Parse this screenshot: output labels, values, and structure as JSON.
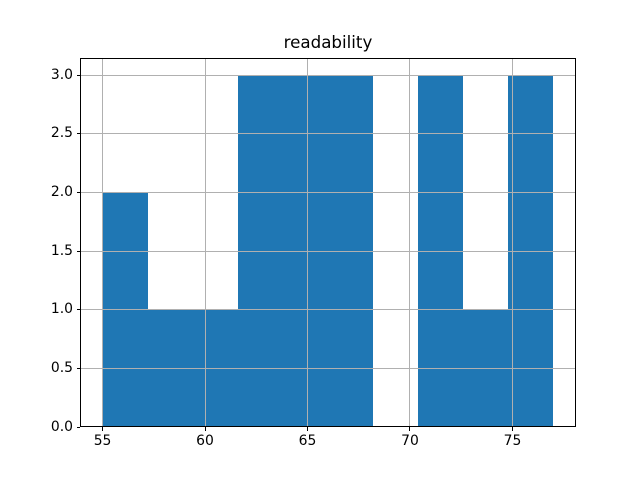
{
  "figure": {
    "background": "#ffffff"
  },
  "chart_data": {
    "type": "bar",
    "subtype": "histogram",
    "title": "readability",
    "xlabel": "",
    "ylabel": "",
    "bin_edges": [
      55.0,
      57.2,
      59.4,
      61.6,
      63.8,
      66.0,
      68.2,
      70.4,
      72.6,
      74.8,
      77.0
    ],
    "counts": [
      2,
      1,
      1,
      3,
      3,
      3,
      0,
      3,
      1,
      3
    ],
    "xlim": [
      53.9,
      78.1
    ],
    "ylim": [
      0,
      3.15
    ],
    "xticks": [
      {
        "value": 55,
        "label": "55"
      },
      {
        "value": 60,
        "label": "60"
      },
      {
        "value": 65,
        "label": "65"
      },
      {
        "value": 70,
        "label": "70"
      },
      {
        "value": 75,
        "label": "75"
      }
    ],
    "yticks": [
      {
        "value": 0.0,
        "label": "0.0"
      },
      {
        "value": 0.5,
        "label": "0.5"
      },
      {
        "value": 1.0,
        "label": "1.0"
      },
      {
        "value": 1.5,
        "label": "1.5"
      },
      {
        "value": 2.0,
        "label": "2.0"
      },
      {
        "value": 2.5,
        "label": "2.5"
      },
      {
        "value": 3.0,
        "label": "3.0"
      }
    ],
    "grid": true,
    "grid_over_bars": true,
    "legend": null,
    "colors": {
      "bar": "#1f77b4",
      "grid": "#b0b0b0",
      "axis": "#000000",
      "text": "#000000"
    }
  }
}
